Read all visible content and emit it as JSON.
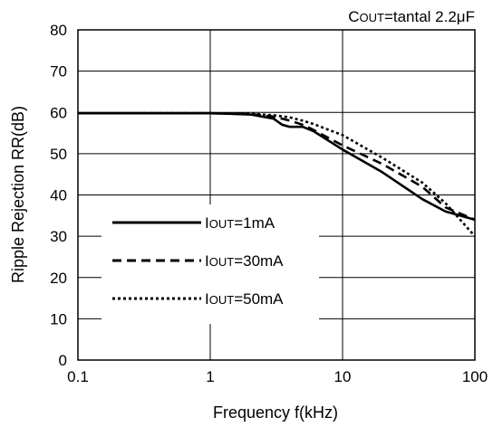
{
  "chart_data": {
    "type": "line",
    "annotation": {
      "main": "C",
      "sub": "OUT",
      "rest": "=tantal 2.2μF"
    },
    "xlabel": "Frequency f(kHz)",
    "ylabel": "Ripple Rejection RR(dB)",
    "xscale": "log",
    "xlim": [
      0.1,
      100
    ],
    "ylim": [
      0,
      80
    ],
    "x_ticks": [
      {
        "value": 0.1,
        "label": "0.1"
      },
      {
        "value": 1,
        "label": "1"
      },
      {
        "value": 10,
        "label": "10"
      },
      {
        "value": 100,
        "label": "100"
      }
    ],
    "y_ticks": [
      {
        "value": 0,
        "label": "0"
      },
      {
        "value": 10,
        "label": "10"
      },
      {
        "value": 20,
        "label": "20"
      },
      {
        "value": 30,
        "label": "30"
      },
      {
        "value": 40,
        "label": "40"
      },
      {
        "value": 50,
        "label": "50"
      },
      {
        "value": 60,
        "label": "60"
      },
      {
        "value": 70,
        "label": "70"
      },
      {
        "value": 80,
        "label": "80"
      }
    ],
    "grid": true,
    "legend_position": "lower-left",
    "series": [
      {
        "name": "IOUT=1mA",
        "label_main": "I",
        "label_sub": "OUT",
        "label_rest": "=1mA",
        "style": "solid",
        "x": [
          0.1,
          0.3,
          1,
          2,
          3,
          3.5,
          4,
          5,
          6,
          10,
          20,
          40,
          60,
          100
        ],
        "y": [
          59.8,
          59.8,
          59.8,
          59.5,
          58.5,
          57.0,
          56.5,
          56.5,
          55.5,
          51.0,
          45.5,
          39.0,
          36.0,
          34.0
        ]
      },
      {
        "name": "IOUT=30mA",
        "label_main": "I",
        "label_sub": "OUT",
        "label_rest": "=30mA",
        "style": "dashed",
        "x": [
          0.1,
          0.3,
          1,
          2,
          3,
          4,
          5,
          6,
          10,
          20,
          40,
          60,
          100
        ],
        "y": [
          59.8,
          59.8,
          59.8,
          59.6,
          59.0,
          58.0,
          57.0,
          55.8,
          52.0,
          47.5,
          42.0,
          37.0,
          34.0
        ]
      },
      {
        "name": "IOUT=50mA",
        "label_main": "I",
        "label_sub": "OUT",
        "label_rest": "=50mA",
        "style": "dotted",
        "x": [
          0.1,
          0.3,
          1,
          2,
          3,
          4,
          5,
          6,
          10,
          20,
          40,
          60,
          100
        ],
        "y": [
          59.8,
          59.8,
          59.8,
          59.7,
          59.3,
          58.8,
          58.0,
          57.2,
          54.5,
          49.0,
          43.0,
          38.0,
          30.0
        ]
      }
    ]
  }
}
